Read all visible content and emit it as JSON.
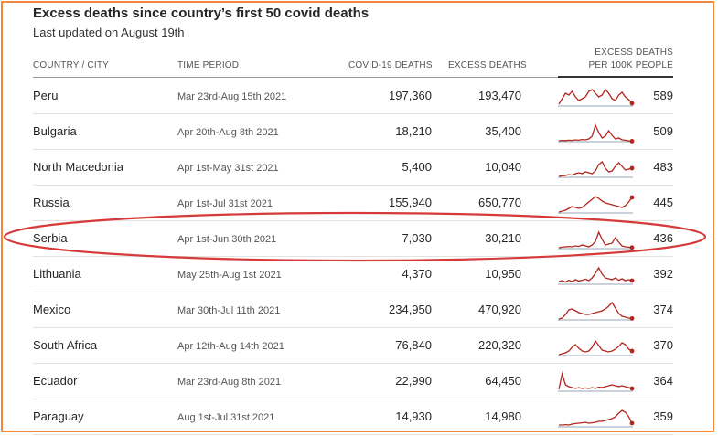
{
  "chart_data": {
    "type": "table",
    "title": "Excess deaths since country’s first 50 covid deaths",
    "subtitle": "Last updated on August 19th",
    "columns": {
      "country": "COUNTRY / CITY",
      "period": "TIME PERIOD",
      "covid": "COVID-19 DEATHS",
      "excess": "EXCESS DEATHS",
      "per100k_line1": "EXCESS DEATHS",
      "per100k_line2": "PER 100K PEOPLE"
    },
    "rows": [
      {
        "country": "Peru",
        "period": "Mar 23rd-Aug 15th 2021",
        "covid": "197,360",
        "excess": "193,470",
        "per100k": "589",
        "trend": [
          0.1,
          0.4,
          0.7,
          0.6,
          0.8,
          0.5,
          0.3,
          0.4,
          0.5,
          0.8,
          0.9,
          0.7,
          0.5,
          0.6,
          0.9,
          0.7,
          0.4,
          0.3,
          0.6,
          0.75,
          0.5,
          0.35,
          0.15
        ]
      },
      {
        "country": "Bulgaria",
        "period": "Apr 20th-Aug 8th 2021",
        "covid": "18,210",
        "excess": "35,400",
        "per100k": "509",
        "trend": [
          0.05,
          0.07,
          0.06,
          0.08,
          0.07,
          0.1,
          0.08,
          0.12,
          0.1,
          0.15,
          0.3,
          0.9,
          0.5,
          0.2,
          0.3,
          0.6,
          0.35,
          0.15,
          0.2,
          0.1,
          0.08,
          0.05,
          0.03
        ]
      },
      {
        "country": "North Macedonia",
        "period": "Apr 1st-May 31st 2021",
        "covid": "5,400",
        "excess": "10,040",
        "per100k": "483",
        "trend": [
          0.05,
          0.08,
          0.1,
          0.15,
          0.12,
          0.2,
          0.25,
          0.2,
          0.3,
          0.25,
          0.2,
          0.35,
          0.7,
          0.85,
          0.5,
          0.3,
          0.35,
          0.6,
          0.8,
          0.6,
          0.4,
          0.45,
          0.5
        ]
      },
      {
        "country": "Russia",
        "period": "Apr 1st-Jul 31st 2021",
        "covid": "155,940",
        "excess": "650,770",
        "per100k": "445",
        "trend": [
          0.05,
          0.1,
          0.15,
          0.25,
          0.35,
          0.3,
          0.25,
          0.3,
          0.45,
          0.6,
          0.75,
          0.9,
          0.8,
          0.65,
          0.55,
          0.5,
          0.45,
          0.4,
          0.35,
          0.3,
          0.4,
          0.6,
          0.85
        ]
      },
      {
        "country": "Serbia",
        "period": "Apr 1st-Jun 30th 2021",
        "covid": "7,030",
        "excess": "30,210",
        "per100k": "436",
        "trend": [
          0.05,
          0.08,
          0.1,
          0.12,
          0.1,
          0.15,
          0.12,
          0.2,
          0.15,
          0.1,
          0.2,
          0.4,
          0.9,
          0.5,
          0.2,
          0.25,
          0.3,
          0.6,
          0.35,
          0.15,
          0.1,
          0.08,
          0.06
        ]
      },
      {
        "country": "Lithuania",
        "period": "May 25th-Aug 1st 2021",
        "covid": "4,370",
        "excess": "10,950",
        "per100k": "392",
        "trend": [
          0.15,
          0.2,
          0.12,
          0.22,
          0.15,
          0.25,
          0.18,
          0.22,
          0.28,
          0.2,
          0.35,
          0.6,
          0.9,
          0.55,
          0.35,
          0.3,
          0.25,
          0.35,
          0.22,
          0.3,
          0.2,
          0.25,
          0.2
        ]
      },
      {
        "country": "Mexico",
        "period": "Mar 30th-Jul 11th 2021",
        "covid": "234,950",
        "excess": "470,920",
        "per100k": "374",
        "trend": [
          0.05,
          0.1,
          0.3,
          0.55,
          0.6,
          0.5,
          0.4,
          0.35,
          0.3,
          0.3,
          0.35,
          0.4,
          0.45,
          0.5,
          0.6,
          0.75,
          0.95,
          0.65,
          0.35,
          0.2,
          0.15,
          0.1,
          0.08
        ]
      },
      {
        "country": "South Africa",
        "period": "Apr 12th-Aug 14th 2021",
        "covid": "76,840",
        "excess": "220,320",
        "per100k": "370",
        "trend": [
          0.05,
          0.1,
          0.15,
          0.25,
          0.45,
          0.6,
          0.4,
          0.25,
          0.2,
          0.25,
          0.45,
          0.8,
          0.55,
          0.3,
          0.25,
          0.2,
          0.25,
          0.35,
          0.5,
          0.7,
          0.6,
          0.35,
          0.25
        ]
      },
      {
        "country": "Ecuador",
        "period": "Mar 23rd-Aug 8th 2021",
        "covid": "22,990",
        "excess": "64,450",
        "per100k": "364",
        "trend": [
          0.1,
          0.95,
          0.35,
          0.25,
          0.2,
          0.15,
          0.2,
          0.15,
          0.18,
          0.15,
          0.2,
          0.15,
          0.22,
          0.2,
          0.25,
          0.3,
          0.35,
          0.3,
          0.25,
          0.3,
          0.25,
          0.2,
          0.15
        ]
      },
      {
        "country": "Paraguay",
        "period": "Aug 1st-Jul 31st 2021",
        "covid": "14,930",
        "excess": "14,980",
        "per100k": "359",
        "trend": [
          0.1,
          0.1,
          0.12,
          0.1,
          0.15,
          0.18,
          0.2,
          0.22,
          0.25,
          0.2,
          0.22,
          0.25,
          0.3,
          0.3,
          0.35,
          0.4,
          0.45,
          0.55,
          0.75,
          0.9,
          0.8,
          0.55,
          0.2
        ]
      }
    ]
  },
  "colors": {
    "sparkline": "#b3261e",
    "baseline": "#9aa5b4",
    "highlight": "#d63a3a",
    "frame": "#f0883e"
  }
}
